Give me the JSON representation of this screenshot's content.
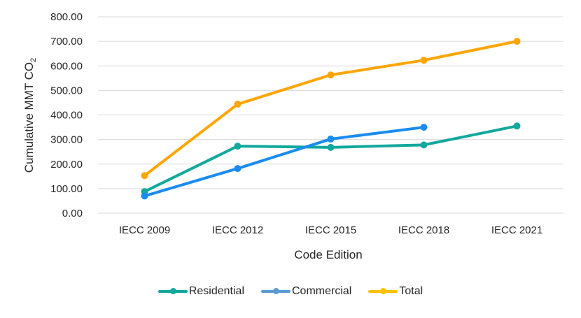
{
  "chart_data": {
    "type": "line",
    "title": "",
    "xlabel": "Code Edition",
    "ylabel": "Cumulative MMT CO2",
    "ylabel_main": "Cumulative MMT CO",
    "ylabel_sub": "2",
    "categories": [
      "IECC 2009",
      "IECC 2012",
      "IECC 2015",
      "IECC 2018",
      "IECC 2021"
    ],
    "ylim": [
      0,
      800
    ],
    "yticks": [
      "0.00",
      "100.00",
      "200.00",
      "300.00",
      "400.00",
      "500.00",
      "600.00",
      "700.00",
      "800.00"
    ],
    "grid": true,
    "legend_position": "bottom",
    "series": [
      {
        "name": "Residential",
        "color": "#12A89D",
        "legend_color": "#12A89D",
        "values": [
          88,
          273,
          268,
          278,
          355
        ]
      },
      {
        "name": "Commercial",
        "color": "#1A8CF0",
        "legend_color": "#5B9BD5",
        "values": [
          70,
          182,
          302,
          350,
          null
        ]
      },
      {
        "name": "Total",
        "color": "#FFA500",
        "legend_color": "#FFC000",
        "values": [
          153,
          444,
          563,
          623,
          700
        ]
      }
    ]
  }
}
